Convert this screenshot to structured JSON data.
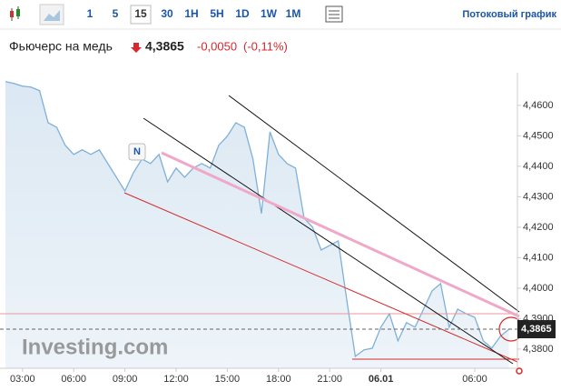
{
  "toolbar": {
    "intervals": [
      {
        "label": "1",
        "selected": false
      },
      {
        "label": "5",
        "selected": false
      },
      {
        "label": "15",
        "selected": true
      },
      {
        "label": "30",
        "selected": false
      },
      {
        "label": "1H",
        "selected": false
      },
      {
        "label": "5H",
        "selected": false
      },
      {
        "label": "1D",
        "selected": false
      },
      {
        "label": "1W",
        "selected": false
      },
      {
        "label": "1M",
        "selected": false
      }
    ],
    "streaming": "Потоковый график"
  },
  "header": {
    "title": "Фьючерс на медь",
    "price": "4,3865",
    "change": "-0,0050",
    "change_pct": "(-0,11%)"
  },
  "chart_data": {
    "type": "area",
    "watermark": "Investing.com",
    "marker": "N",
    "categories": [
      null,
      null,
      "03:00",
      null,
      null,
      null,
      null,
      null,
      "06:00",
      null,
      null,
      null,
      null,
      null,
      "09:00",
      null,
      null,
      null,
      null,
      null,
      "12:00",
      null,
      null,
      null,
      null,
      null,
      "15:00",
      null,
      null,
      null,
      null,
      null,
      "18:00",
      null,
      null,
      null,
      null,
      null,
      "21:00",
      null,
      null,
      null,
      null,
      null,
      "06.01",
      null,
      null,
      null,
      null,
      null,
      null,
      null,
      null,
      null,
      null,
      "06:00",
      null,
      null,
      null,
      null
    ],
    "values": [
      4.4678,
      4.4672,
      4.4663,
      4.466,
      4.4648,
      4.4543,
      4.4528,
      4.4469,
      4.4439,
      4.4454,
      4.4439,
      4.4454,
      4.4409,
      4.4364,
      4.4319,
      4.4379,
      4.4424,
      4.4409,
      4.4439,
      4.4349,
      4.4394,
      4.4364,
      4.4394,
      4.4409,
      4.4394,
      4.4469,
      4.4499,
      4.4543,
      4.4528,
      4.4424,
      4.4245,
      4.4513,
      4.4439,
      4.4409,
      4.4394,
      4.423,
      4.42,
      4.4125,
      4.414,
      4.4155,
      4.3961,
      4.3776,
      4.3797,
      4.3803,
      4.3872,
      4.3916,
      4.3827,
      4.3887,
      4.3872,
      4.3931,
      4.3991,
      4.4015,
      4.3872,
      4.3931,
      4.3916,
      4.3904,
      4.3827,
      4.3803,
      4.3842,
      4.3865
    ],
    "color": "#7fb0d8",
    "ylim": [
      4.3737,
      4.4707
    ],
    "yticks": [
      {
        "value": 4.38,
        "label": "4,3800"
      },
      {
        "value": 4.39,
        "label": "4,3900"
      },
      {
        "value": 4.4,
        "label": "4,4000"
      },
      {
        "value": 4.41,
        "label": "4,4100"
      },
      {
        "value": 4.42,
        "label": "4,4200"
      },
      {
        "value": 4.43,
        "label": "4,4300"
      },
      {
        "value": 4.44,
        "label": "4,4400"
      },
      {
        "value": 4.45,
        "label": "4,4500"
      },
      {
        "value": 4.46,
        "label": "4,4600"
      }
    ],
    "grid": false
  }
}
